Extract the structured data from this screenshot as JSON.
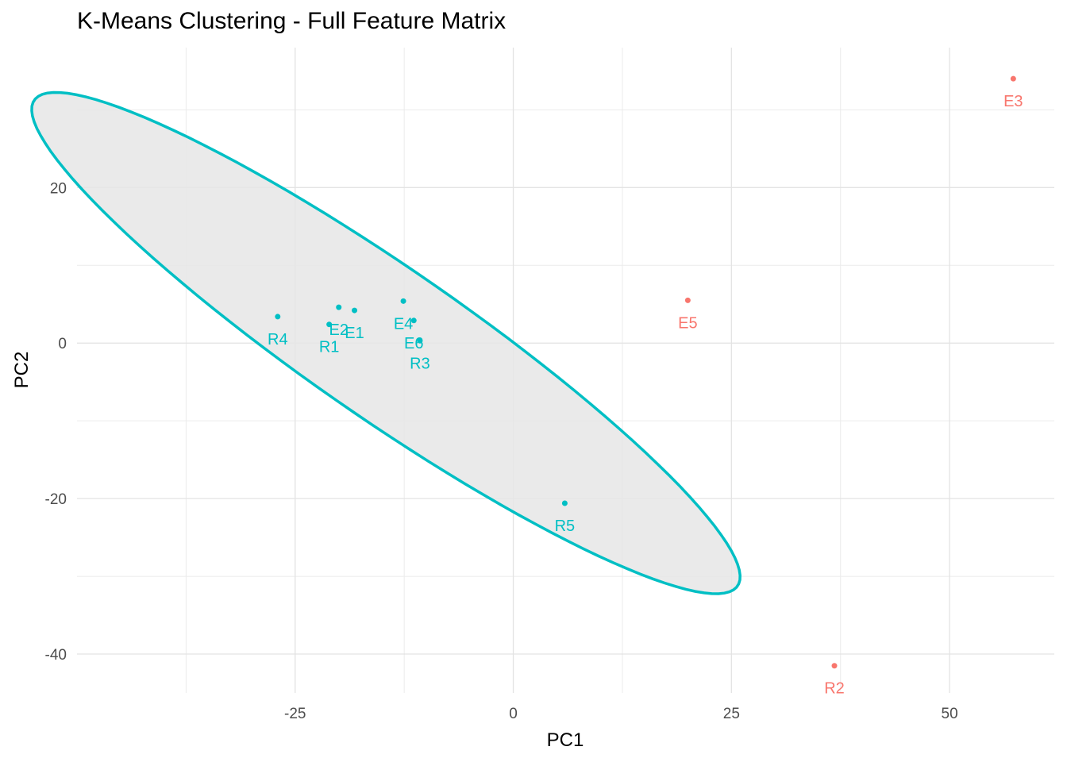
{
  "chart_data": {
    "type": "scatter",
    "title": "K-Means Clustering - Full Feature Matrix",
    "xlabel": "PC1",
    "ylabel": "PC2",
    "xlim": [
      -50,
      62
    ],
    "ylim": [
      -45,
      38
    ],
    "x_ticks": [
      -25,
      0,
      25,
      50
    ],
    "x_tick_labels": [
      "-25",
      "0",
      "25",
      "50"
    ],
    "y_ticks": [
      -40,
      -20,
      0,
      20
    ],
    "y_tick_labels": [
      "-40",
      "-20",
      "0",
      "20"
    ],
    "grid": true,
    "legend": "none",
    "cluster_colors": {
      "1": "#F8766D",
      "2": "#00BFC4"
    },
    "ellipse_fill": "#e6e6e6",
    "points": [
      {
        "label": "E1",
        "x": -18.2,
        "y": 4.2,
        "cluster": "2"
      },
      {
        "label": "E2",
        "x": -20.0,
        "y": 4.6,
        "cluster": "2"
      },
      {
        "label": "E3",
        "x": 57.3,
        "y": 34.0,
        "cluster": "1"
      },
      {
        "label": "E4",
        "x": -12.6,
        "y": 5.4,
        "cluster": "2"
      },
      {
        "label": "E5",
        "x": 20.0,
        "y": 5.5,
        "cluster": "1"
      },
      {
        "label": "E6",
        "x": -11.4,
        "y": 2.9,
        "cluster": "2"
      },
      {
        "label": "R1",
        "x": -21.1,
        "y": 2.4,
        "cluster": "2"
      },
      {
        "label": "R2",
        "x": 36.8,
        "y": -41.5,
        "cluster": "1"
      },
      {
        "label": "R3",
        "x": -10.7,
        "y": 0.3,
        "cluster": "2"
      },
      {
        "label": "R4",
        "x": -27.0,
        "y": 3.4,
        "cluster": "2"
      },
      {
        "label": "R5",
        "x": 5.9,
        "y": -20.6,
        "cluster": "2"
      }
    ],
    "ellipses": [
      {
        "cluster": "2",
        "center_x": -14.6,
        "center_y": 0.0,
        "semi_major": 51.0,
        "semi_minor": 9.3,
        "angle_deg": -38.0
      }
    ]
  }
}
